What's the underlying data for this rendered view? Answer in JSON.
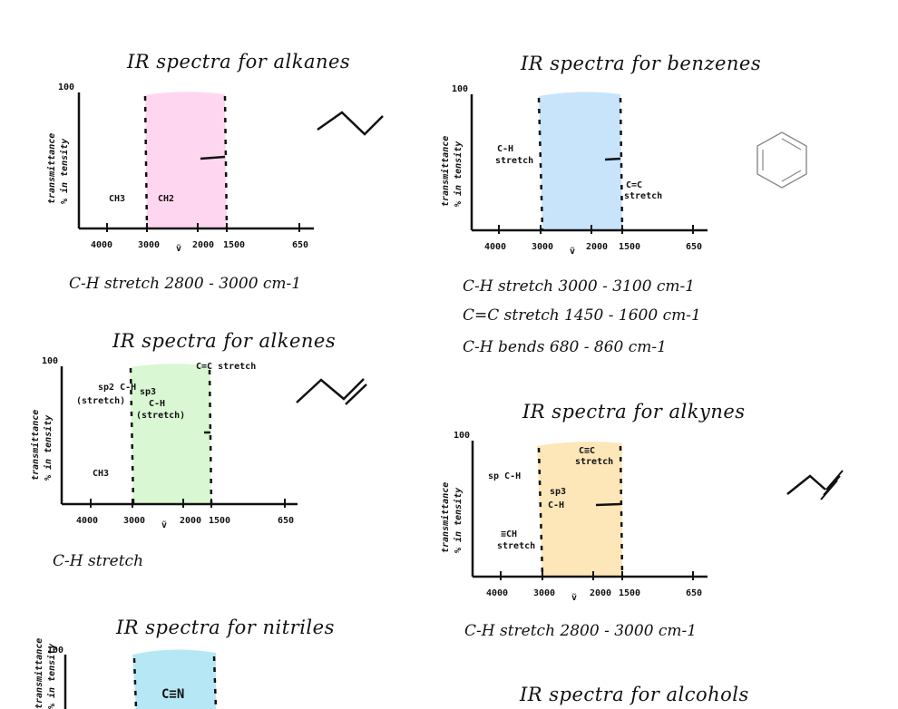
{
  "colors": {
    "alkanes_band": "#ffd6ef",
    "benzenes_band": "#c7e4fb",
    "alkenes_band": "#d9f7d2",
    "alkynes_band": "#fde7b8",
    "nitriles_band": "#b6e7f4",
    "ink": "#111111"
  },
  "common": {
    "y_label_1": "transmittance",
    "y_label_2": "% in tensity",
    "y_top": "100",
    "x_ticks": [
      "4000",
      "3000",
      "2000",
      "1500",
      "650"
    ],
    "x_symbol": "ṽ"
  },
  "panels": {
    "alkanes": {
      "title": "IR spectra for alkanes",
      "labels": [
        "CH3",
        "CH2"
      ],
      "note": "C-H stretch   2800 - 3000 cm-1"
    },
    "benzenes": {
      "title": "IR spectra for benzenes",
      "labels": [
        "C-H",
        "stretch",
        "C=C",
        "stretch"
      ],
      "notes": [
        "C-H stretch   3000 - 3100 cm-1",
        "C=C stretch   1450 - 1600 cm-1",
        "C-H bends  680 - 860 cm-1"
      ]
    },
    "alkenes": {
      "title": "IR spectra for alkenes",
      "labels": [
        "sp2 C-H",
        "(stretch)",
        "sp3",
        "C-H",
        "(stretch)",
        "C=C stretch",
        "CH3"
      ],
      "note": "C-H stretch"
    },
    "alkynes": {
      "title": "IR spectra for alkynes",
      "labels": [
        "sp C-H",
        "C≡C",
        "stretch",
        "sp3",
        "C-H",
        "≡CH",
        "stretch"
      ],
      "note": "C-H stretch   2800 - 3000 cm-1"
    },
    "nitriles": {
      "title": "IR spectra for nitriles",
      "labels": [
        "C≡N"
      ]
    },
    "alcohols": {
      "title": "IR spectra for alcohols"
    }
  }
}
